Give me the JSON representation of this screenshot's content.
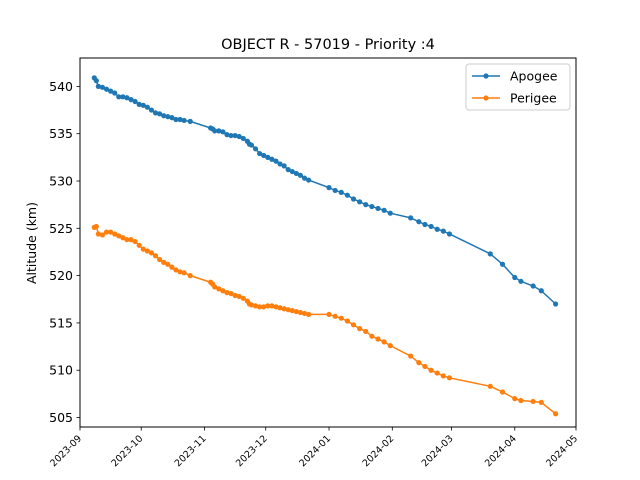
{
  "chart_data": {
    "type": "line",
    "title": "OBJECT R - 57019 - Priority :4",
    "xlabel": "",
    "ylabel": "Altitude (km)",
    "xlim": [
      "2023-09-01",
      "2024-05-01"
    ],
    "ylim": [
      504,
      543
    ],
    "x_ticks": [
      "2023-09",
      "2023-10",
      "2023-11",
      "2023-12",
      "2024-01",
      "2024-02",
      "2024-03",
      "2024-04",
      "2024-05"
    ],
    "y_ticks": [
      505,
      510,
      515,
      520,
      525,
      530,
      535,
      540
    ],
    "legend_position": "top-right",
    "grid": false,
    "series": [
      {
        "name": "Apogee",
        "color": "#1f77b4",
        "x": [
          "2023-09-08",
          "2023-09-09",
          "2023-09-10",
          "2023-09-12",
          "2023-09-14",
          "2023-09-16",
          "2023-09-18",
          "2023-09-20",
          "2023-09-22",
          "2023-09-24",
          "2023-09-26",
          "2023-09-28",
          "2023-09-30",
          "2023-10-02",
          "2023-10-04",
          "2023-10-06",
          "2023-10-08",
          "2023-10-10",
          "2023-10-12",
          "2023-10-14",
          "2023-10-16",
          "2023-10-18",
          "2023-10-20",
          "2023-10-22",
          "2023-10-25",
          "2023-11-04",
          "2023-11-05",
          "2023-11-06",
          "2023-11-08",
          "2023-11-10",
          "2023-11-12",
          "2023-11-14",
          "2023-11-16",
          "2023-11-18",
          "2023-11-20",
          "2023-11-22",
          "2023-11-23",
          "2023-11-24",
          "2023-11-26",
          "2023-11-28",
          "2023-11-30",
          "2023-12-02",
          "2023-12-04",
          "2023-12-06",
          "2023-12-08",
          "2023-12-10",
          "2023-12-12",
          "2023-12-14",
          "2023-12-16",
          "2023-12-18",
          "2023-12-20",
          "2023-12-22",
          "2024-01-01",
          "2024-01-04",
          "2024-01-07",
          "2024-01-10",
          "2024-01-13",
          "2024-01-16",
          "2024-01-19",
          "2024-01-22",
          "2024-01-25",
          "2024-01-28",
          "2024-01-31",
          "2024-02-10",
          "2024-02-14",
          "2024-02-17",
          "2024-02-20",
          "2024-02-23",
          "2024-02-26",
          "2024-02-29",
          "2024-03-20",
          "2024-03-26",
          "2024-04-01",
          "2024-04-04",
          "2024-04-10",
          "2024-04-14",
          "2024-04-21"
        ],
        "values": [
          540.9,
          540.6,
          540.0,
          539.9,
          539.7,
          539.5,
          539.3,
          538.9,
          538.9,
          538.8,
          538.6,
          538.4,
          538.1,
          538.0,
          537.8,
          537.5,
          537.2,
          537.1,
          536.9,
          536.8,
          536.7,
          536.5,
          536.5,
          536.4,
          536.3,
          535.6,
          535.5,
          535.3,
          535.3,
          535.2,
          534.9,
          534.8,
          534.8,
          534.7,
          534.5,
          534.2,
          533.9,
          533.8,
          533.4,
          532.9,
          532.7,
          532.5,
          532.3,
          532.1,
          531.8,
          531.6,
          531.2,
          531.0,
          530.8,
          530.6,
          530.3,
          530.1,
          529.3,
          529.0,
          528.8,
          528.5,
          528.1,
          527.8,
          527.5,
          527.3,
          527.1,
          526.9,
          526.6,
          526.1,
          525.7,
          525.4,
          525.2,
          524.9,
          524.7,
          524.4,
          522.3,
          521.2,
          519.8,
          519.4,
          518.9,
          518.4,
          517.0
        ]
      },
      {
        "name": "Perigee",
        "color": "#ff7f0e",
        "x": [
          "2023-09-08",
          "2023-09-09",
          "2023-09-10",
          "2023-09-12",
          "2023-09-14",
          "2023-09-16",
          "2023-09-18",
          "2023-09-20",
          "2023-09-22",
          "2023-09-24",
          "2023-09-26",
          "2023-09-28",
          "2023-09-30",
          "2023-10-02",
          "2023-10-04",
          "2023-10-06",
          "2023-10-08",
          "2023-10-10",
          "2023-10-12",
          "2023-10-14",
          "2023-10-16",
          "2023-10-18",
          "2023-10-20",
          "2023-10-22",
          "2023-10-25",
          "2023-11-04",
          "2023-11-05",
          "2023-11-06",
          "2023-11-08",
          "2023-11-10",
          "2023-11-12",
          "2023-11-14",
          "2023-11-16",
          "2023-11-18",
          "2023-11-20",
          "2023-11-22",
          "2023-11-23",
          "2023-11-24",
          "2023-11-26",
          "2023-11-28",
          "2023-11-30",
          "2023-12-02",
          "2023-12-04",
          "2023-12-06",
          "2023-12-08",
          "2023-12-10",
          "2023-12-12",
          "2023-12-14",
          "2023-12-16",
          "2023-12-18",
          "2023-12-20",
          "2023-12-22",
          "2024-01-01",
          "2024-01-04",
          "2024-01-07",
          "2024-01-10",
          "2024-01-13",
          "2024-01-16",
          "2024-01-19",
          "2024-01-22",
          "2024-01-25",
          "2024-01-28",
          "2024-01-31",
          "2024-02-10",
          "2024-02-14",
          "2024-02-17",
          "2024-02-20",
          "2024-02-23",
          "2024-02-26",
          "2024-02-29",
          "2024-03-20",
          "2024-03-26",
          "2024-04-01",
          "2024-04-04",
          "2024-04-10",
          "2024-04-14",
          "2024-04-21"
        ],
        "values": [
          525.1,
          525.2,
          524.4,
          524.3,
          524.6,
          524.6,
          524.4,
          524.2,
          524.0,
          523.8,
          523.8,
          523.6,
          523.2,
          522.8,
          522.6,
          522.4,
          522.1,
          521.7,
          521.4,
          521.2,
          520.9,
          520.6,
          520.4,
          520.3,
          520.0,
          519.3,
          519.1,
          518.8,
          518.6,
          518.4,
          518.2,
          518.1,
          517.9,
          517.8,
          517.6,
          517.3,
          517.0,
          516.9,
          516.8,
          516.7,
          516.7,
          516.8,
          516.8,
          516.7,
          516.6,
          516.5,
          516.4,
          516.3,
          516.2,
          516.1,
          516.0,
          515.9,
          515.9,
          515.7,
          515.5,
          515.2,
          514.8,
          514.4,
          514.1,
          513.6,
          513.3,
          513.0,
          512.6,
          511.5,
          510.8,
          510.4,
          510.0,
          509.7,
          509.4,
          509.2,
          508.3,
          507.7,
          507.0,
          506.8,
          506.7,
          506.6,
          505.4
        ]
      }
    ]
  }
}
